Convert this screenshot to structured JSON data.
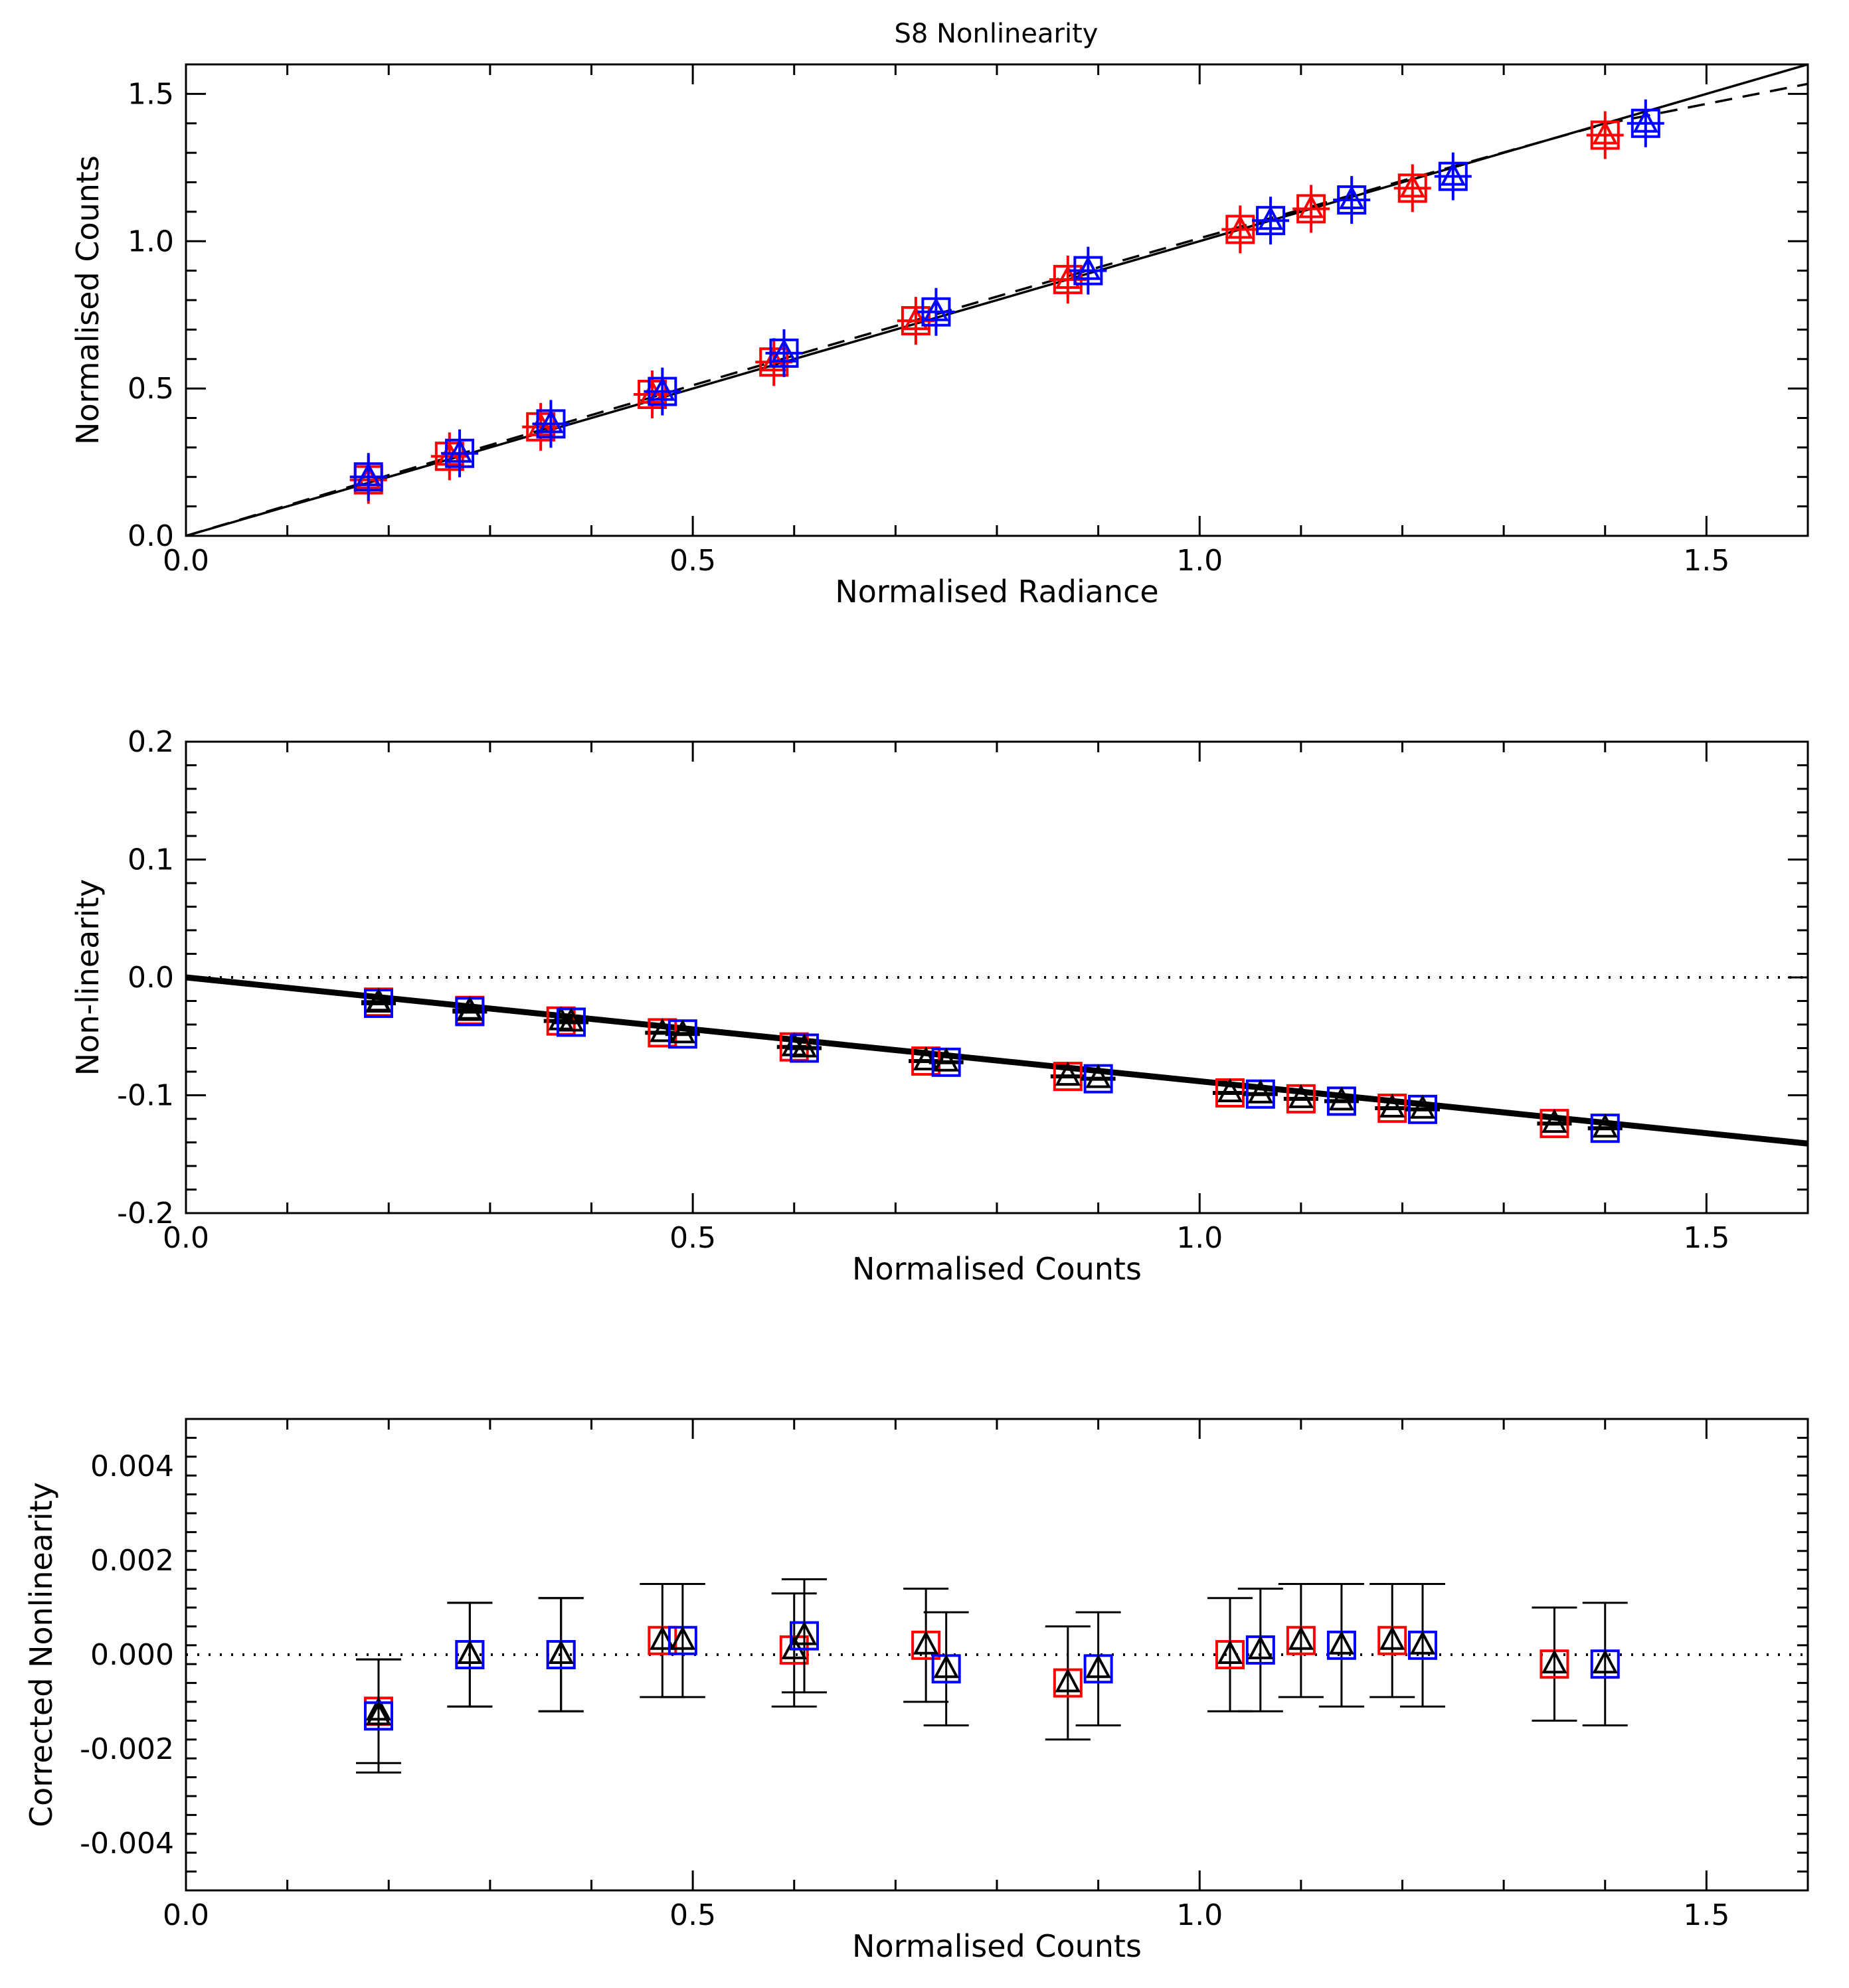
{
  "figure_title": "S8 Nonlinearity",
  "colors": {
    "red": "#ff0000",
    "blue": "#0000ff",
    "axis": "#000000",
    "background": "#ffffff"
  },
  "chart_data": [
    {
      "id": "response",
      "type": "scatter",
      "title": "S8 Nonlinearity",
      "xlabel": "Normalised Radiance",
      "ylabel": "Normalised Counts",
      "xlim": [
        0.0,
        1.6
      ],
      "ylim": [
        0.0,
        1.6
      ],
      "xticks": [
        0.0,
        0.5,
        1.0,
        1.5
      ],
      "yticks": [
        0.0,
        0.5,
        1.0,
        1.5
      ],
      "xtick_labels": [
        "0.0",
        "0.5",
        "1.0",
        "1.5"
      ],
      "ytick_labels": [
        "0.0",
        "0.5",
        "1.0",
        "1.5"
      ],
      "lines": [
        {
          "name": "linear fit",
          "style": "solid",
          "x": [
            0.0,
            1.6
          ],
          "y": [
            0.0,
            1.6
          ]
        },
        {
          "name": "nonlinear fit",
          "style": "dashed",
          "x": [
            0.0,
            0.2,
            0.4,
            0.6,
            0.8,
            1.0,
            1.2,
            1.4,
            1.6
          ],
          "y": [
            0.0,
            0.206,
            0.41,
            0.612,
            0.812,
            1.01,
            1.205,
            1.398,
            1.534
          ]
        }
      ],
      "series": [
        {
          "name": "red series",
          "color": "#ff0000",
          "x": [
            0.18,
            0.26,
            0.35,
            0.46,
            0.58,
            0.72,
            0.87,
            1.04,
            1.11,
            1.21,
            1.4
          ],
          "y": [
            0.19,
            0.27,
            0.37,
            0.48,
            0.59,
            0.73,
            0.87,
            1.04,
            1.11,
            1.18,
            1.36
          ]
        },
        {
          "name": "blue series",
          "color": "#0000ff",
          "x": [
            0.18,
            0.27,
            0.36,
            0.47,
            0.59,
            0.74,
            0.89,
            1.07,
            1.15,
            1.25,
            1.44
          ],
          "y": [
            0.2,
            0.28,
            0.38,
            0.49,
            0.62,
            0.76,
            0.9,
            1.07,
            1.14,
            1.22,
            1.4
          ]
        }
      ]
    },
    {
      "id": "nonlinearity",
      "type": "scatter",
      "xlabel": "Normalised Counts",
      "ylabel": "Non-linearity",
      "xlim": [
        0.0,
        1.6
      ],
      "ylim": [
        -0.2,
        0.2
      ],
      "xticks": [
        0.0,
        0.5,
        1.0,
        1.5
      ],
      "yticks": [
        -0.2,
        -0.1,
        0.0,
        0.1,
        0.2
      ],
      "xtick_labels": [
        "0.0",
        "0.5",
        "1.0",
        "1.5"
      ],
      "ytick_labels": [
        "-0.2",
        "-0.1",
        "0.0",
        "0.1",
        "0.2"
      ],
      "lines": [
        {
          "name": "zero reference",
          "style": "dotted",
          "x": [
            0.0,
            1.6
          ],
          "y": [
            0.0,
            0.0
          ]
        },
        {
          "name": "fit",
          "style": "solid",
          "x": [
            0.0,
            1.6
          ],
          "y": [
            0.0,
            -0.141
          ]
        }
      ],
      "series": [
        {
          "name": "red series",
          "color": "#ff0000",
          "x": [
            0.19,
            0.28,
            0.37,
            0.47,
            0.6,
            0.73,
            0.87,
            1.03,
            1.1,
            1.19,
            1.35
          ],
          "y": [
            -0.021,
            -0.028,
            -0.037,
            -0.047,
            -0.059,
            -0.071,
            -0.084,
            -0.098,
            -0.103,
            -0.111,
            -0.124
          ]
        },
        {
          "name": "blue series",
          "color": "#0000ff",
          "x": [
            0.19,
            0.28,
            0.38,
            0.49,
            0.61,
            0.75,
            0.9,
            1.06,
            1.14,
            1.22,
            1.4
          ],
          "y": [
            -0.022,
            -0.029,
            -0.038,
            -0.048,
            -0.06,
            -0.072,
            -0.086,
            -0.099,
            -0.105,
            -0.112,
            -0.128
          ]
        }
      ]
    },
    {
      "id": "corrected",
      "type": "scatter",
      "xlabel": "Normalised Counts",
      "ylabel": "Corrected Nonlinearity",
      "xlim": [
        0.0,
        1.6
      ],
      "ylim": [
        -0.005,
        0.005
      ],
      "xticks": [
        0.0,
        0.5,
        1.0,
        1.5
      ],
      "yticks": [
        -0.004,
        -0.002,
        0.0,
        0.002,
        0.004
      ],
      "xtick_labels": [
        "0.0",
        "0.5",
        "1.0",
        "1.5"
      ],
      "ytick_labels": [
        "-0.004",
        "-0.002",
        "0.000",
        "0.002",
        "0.004"
      ],
      "lines": [
        {
          "name": "zero reference",
          "style": "dotted",
          "x": [
            0.0,
            1.6
          ],
          "y": [
            0.0,
            0.0
          ]
        }
      ],
      "series": [
        {
          "name": "red series",
          "color": "#ff0000",
          "x": [
            0.19,
            0.28,
            0.37,
            0.47,
            0.6,
            0.73,
            0.87,
            1.03,
            1.1,
            1.19,
            1.35
          ],
          "y": [
            -0.0012,
            0.0,
            0.0,
            0.0003,
            0.0001,
            0.0002,
            -0.0006,
            0.0,
            0.0003,
            0.0003,
            -0.0002
          ],
          "yerr": [
            0.0011,
            0.0011,
            0.0012,
            0.0012,
            0.0012,
            0.0012,
            0.0012,
            0.0012,
            0.0012,
            0.0012,
            0.0012
          ]
        },
        {
          "name": "blue series",
          "color": "#0000ff",
          "x": [
            0.19,
            0.28,
            0.37,
            0.49,
            0.61,
            0.75,
            0.9,
            1.06,
            1.14,
            1.22,
            1.4
          ],
          "y": [
            -0.0013,
            0.0,
            0.0,
            0.0003,
            0.0004,
            -0.0003,
            -0.0003,
            0.0001,
            0.0002,
            0.0002,
            -0.0002
          ],
          "yerr": [
            0.0012,
            0.0011,
            0.0012,
            0.0012,
            0.0012,
            0.0012,
            0.0012,
            0.0013,
            0.0013,
            0.0013,
            0.0013
          ]
        }
      ]
    }
  ]
}
